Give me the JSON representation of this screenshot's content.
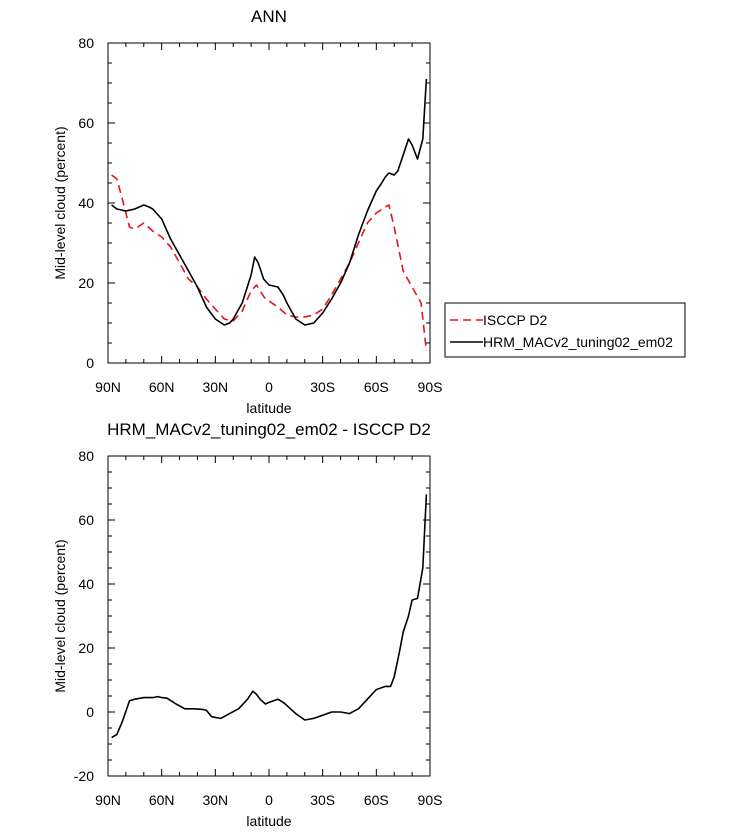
{
  "chart_data": [
    {
      "type": "line",
      "title": "ANN",
      "xlabel": "latitude",
      "ylabel": "Mid-level cloud (percent)",
      "xlim": [
        90,
        -90
      ],
      "ylim": [
        0,
        80
      ],
      "x_ticks": [
        90,
        60,
        30,
        0,
        -30,
        -60,
        -90
      ],
      "x_tick_labels": [
        "90N",
        "60N",
        "30N",
        "0",
        "30S",
        "60S",
        "90S"
      ],
      "y_ticks": [
        0,
        20,
        40,
        60,
        80
      ],
      "y_tick_labels": [
        "0",
        "20",
        "40",
        "60",
        "80"
      ],
      "grid": false,
      "legend_position": "right",
      "series": [
        {
          "name": "ISCCP D2",
          "color": "#e8141a",
          "dash": "dashed",
          "x": [
            88,
            85,
            82,
            78,
            75,
            70,
            65,
            60,
            55,
            50,
            45,
            40,
            35,
            30,
            25,
            20,
            15,
            10,
            7,
            5,
            2,
            0,
            -5,
            -10,
            -15,
            -20,
            -25,
            -30,
            -35,
            -40,
            -45,
            -50,
            -55,
            -60,
            -65,
            -67,
            -70,
            -75,
            -80,
            -85,
            -88
          ],
          "y": [
            47,
            46,
            41,
            34,
            33.5,
            35,
            33,
            31.5,
            29,
            25,
            21,
            19,
            16,
            13.5,
            11,
            10.5,
            13,
            18,
            19.5,
            18,
            16,
            15.5,
            14,
            12,
            11.5,
            11.5,
            12,
            13.5,
            17,
            21,
            25,
            30,
            35,
            37.5,
            39,
            39.5,
            34,
            23,
            19,
            15,
            3
          ]
        },
        {
          "name": "HRM_MACv2_tuning02_em02",
          "color": "#000000",
          "dash": "solid",
          "x": [
            88,
            85,
            80,
            75,
            70,
            67,
            65,
            60,
            55,
            50,
            45,
            40,
            35,
            30,
            25,
            22,
            20,
            15,
            10,
            8,
            6,
            3,
            0,
            -5,
            -8,
            -10,
            -15,
            -20,
            -25,
            -30,
            -35,
            -40,
            -45,
            -50,
            -55,
            -60,
            -63,
            -65,
            -67,
            -70,
            -72,
            -75,
            -78,
            -80,
            -83,
            -86,
            -88
          ],
          "y": [
            39.5,
            38.5,
            38,
            38.5,
            39.5,
            39,
            38.5,
            36,
            31,
            27,
            23,
            19,
            14,
            11,
            9.5,
            10,
            11,
            15,
            22,
            26.5,
            25,
            21,
            19.5,
            19,
            17,
            15,
            11,
            9.5,
            10,
            12.5,
            16,
            20,
            25,
            32,
            38,
            43,
            45,
            46.5,
            47.5,
            47,
            48,
            52,
            56,
            54.5,
            51,
            56,
            71
          ]
        }
      ]
    },
    {
      "type": "line",
      "title": "HRM_MACv2_tuning02_em02 - ISCCP D2",
      "xlabel": "latitude",
      "ylabel": "Mid-level cloud (percent)",
      "xlim": [
        90,
        -90
      ],
      "ylim": [
        -20,
        80
      ],
      "x_ticks": [
        90,
        60,
        30,
        0,
        -30,
        -60,
        -90
      ],
      "x_tick_labels": [
        "90N",
        "60N",
        "30N",
        "0",
        "30S",
        "60S",
        "90S"
      ],
      "y_ticks": [
        -20,
        0,
        20,
        40,
        60,
        80
      ],
      "y_tick_labels": [
        "-20",
        "0",
        "20",
        "40",
        "60",
        "80"
      ],
      "grid": false,
      "series": [
        {
          "color": "#000000",
          "dash": "solid",
          "x": [
            88,
            85,
            82,
            78,
            75,
            70,
            65,
            62,
            60,
            57,
            52,
            47,
            42,
            37,
            35,
            32,
            27,
            22,
            17,
            12,
            9,
            7,
            5,
            2,
            0,
            -5,
            -8,
            -11,
            -15,
            -20,
            -25,
            -30,
            -35,
            -40,
            -45,
            -50,
            -55,
            -60,
            -65,
            -68,
            -70,
            -73,
            -75,
            -78,
            -80,
            -83,
            -86,
            -88
          ],
          "y": [
            -8,
            -7,
            -3,
            3.5,
            4,
            4.5,
            4.5,
            4.8,
            4.5,
            4.3,
            2.5,
            1,
            1,
            0.8,
            0.5,
            -1.5,
            -2,
            -0.5,
            1,
            4,
            6.5,
            5.5,
            4,
            2.5,
            3,
            4,
            3,
            1.5,
            -0.5,
            -2.5,
            -2,
            -1,
            0,
            0,
            -0.5,
            1,
            4,
            7,
            8,
            8,
            11,
            19,
            25,
            30,
            35,
            35.5,
            45,
            68
          ]
        }
      ]
    }
  ]
}
